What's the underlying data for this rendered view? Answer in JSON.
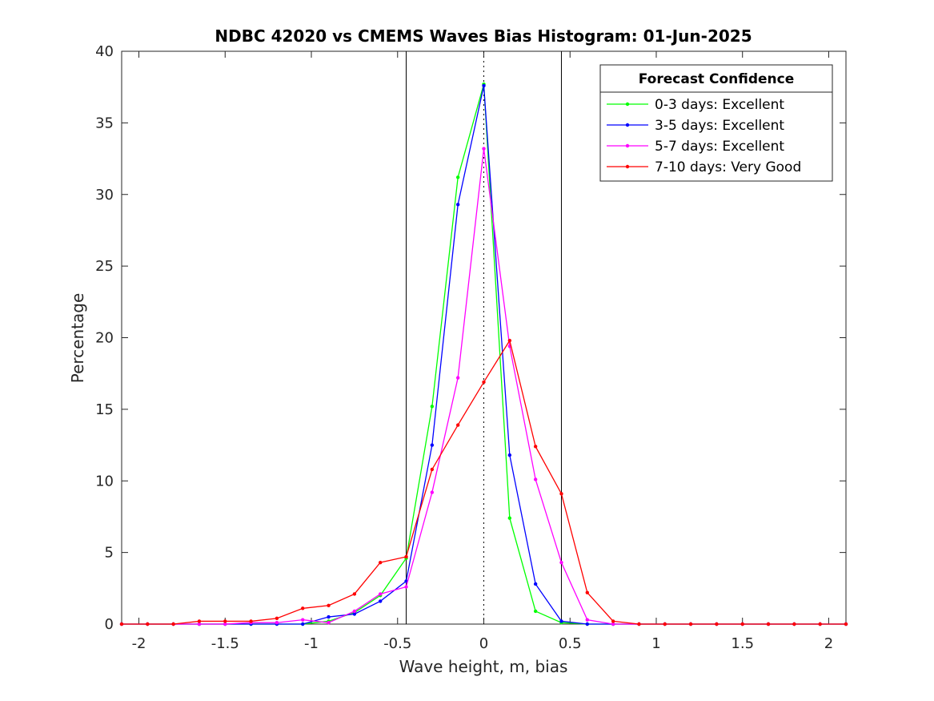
{
  "chart_data": {
    "type": "line",
    "title": "NDBC 42020 vs CMEMS Waves Bias Histogram: 01-Jun-2025",
    "xlabel": "Wave height, m, bias",
    "ylabel": "Percentage",
    "xlim": [
      -2.1,
      2.1
    ],
    "ylim": [
      0,
      40
    ],
    "xticks": [
      -2,
      -1.5,
      -1,
      -0.5,
      0,
      0.5,
      1,
      1.5,
      2
    ],
    "xtick_labels": [
      "-2",
      "-1.5",
      "-1",
      "-0.5",
      "0",
      "0.5",
      "1",
      "1.5",
      "2"
    ],
    "yticks": [
      0,
      5,
      10,
      15,
      20,
      25,
      30,
      35,
      40
    ],
    "ytick_labels": [
      "0",
      "5",
      "10",
      "15",
      "20",
      "25",
      "30",
      "35",
      "40"
    ],
    "grid": false,
    "legend": {
      "title": "Forecast Confidence",
      "position": "top-right"
    },
    "reference_lines": {
      "solid": [
        -0.45,
        0.45
      ],
      "dotted": [
        0
      ]
    },
    "x": [
      -2.1,
      -1.95,
      -1.8,
      -1.65,
      -1.5,
      -1.35,
      -1.2,
      -1.05,
      -0.9,
      -0.75,
      -0.6,
      -0.45,
      -0.3,
      -0.15,
      0,
      0.15,
      0.3,
      0.45,
      0.6,
      0.75,
      0.9,
      1.05,
      1.2,
      1.35,
      1.5,
      1.65,
      1.8,
      1.95,
      2.1
    ],
    "series": [
      {
        "name": "0-3 days: Excellent",
        "color": "#00ff00",
        "values": [
          0,
          0,
          0,
          0,
          0,
          0,
          0,
          0,
          0.2,
          0.8,
          2.0,
          4.6,
          15.2,
          31.2,
          37.7,
          7.4,
          0.9,
          0.1,
          0,
          0,
          0,
          0,
          0,
          0,
          0,
          0,
          0,
          0,
          0
        ]
      },
      {
        "name": "3-5 days: Excellent",
        "color": "#0000ff",
        "values": [
          0,
          0,
          0,
          0,
          0,
          0,
          0,
          0,
          0.5,
          0.7,
          1.6,
          3.0,
          12.5,
          29.3,
          37.6,
          11.8,
          2.8,
          0.2,
          0,
          0,
          0,
          0,
          0,
          0,
          0,
          0,
          0,
          0,
          0
        ]
      },
      {
        "name": "5-7 days: Excellent",
        "color": "#ff00ff",
        "values": [
          0,
          0,
          0,
          0,
          0,
          0.1,
          0.1,
          0.3,
          0.1,
          0.9,
          2.1,
          2.6,
          9.2,
          17.2,
          33.2,
          19.4,
          10.1,
          4.3,
          0.3,
          0,
          0,
          0,
          0,
          0,
          0,
          0,
          0,
          0,
          0
        ]
      },
      {
        "name": "7-10 days: Very Good",
        "color": "#ff0000",
        "values": [
          0,
          0,
          0,
          0.2,
          0.2,
          0.2,
          0.4,
          1.1,
          1.3,
          2.1,
          4.3,
          4.7,
          10.8,
          13.9,
          16.9,
          19.8,
          12.4,
          9.1,
          2.2,
          0.2,
          0,
          0,
          0,
          0,
          0,
          0,
          0,
          0,
          0
        ]
      }
    ]
  }
}
